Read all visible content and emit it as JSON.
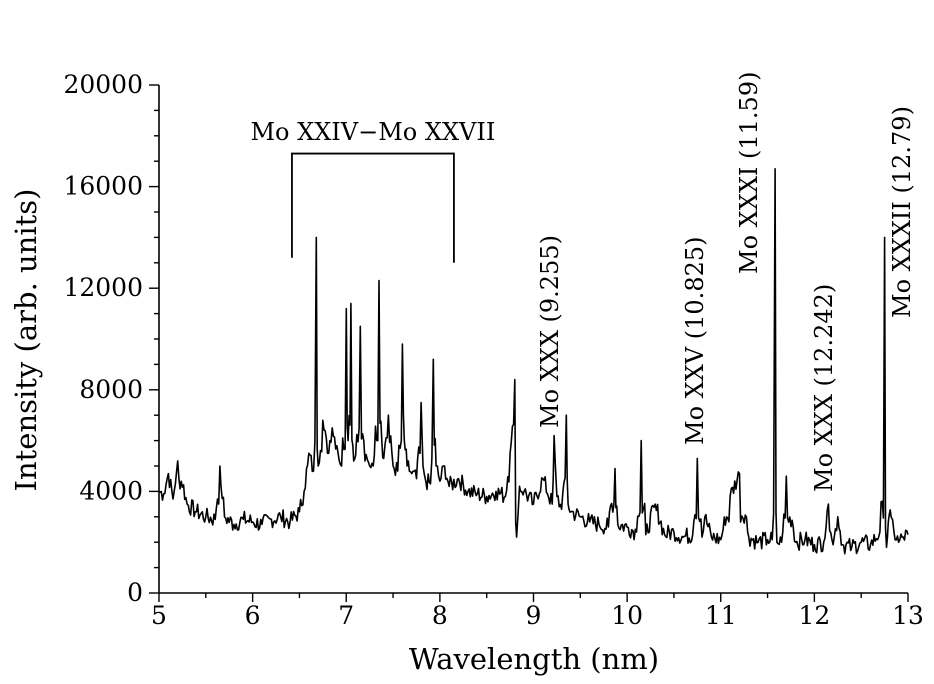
{
  "chart_data": {
    "type": "line",
    "xlabel": "Wavelength (nm)",
    "ylabel": "Intensity (arb. units)",
    "xlim": [
      5,
      13
    ],
    "ylim": [
      0,
      20000
    ],
    "x_ticks": [
      "5",
      "6",
      "7",
      "8",
      "9",
      "10",
      "11",
      "12",
      "13"
    ],
    "y_ticks": [
      "0",
      "4000",
      "8000",
      "12000",
      "16000",
      "20000"
    ],
    "grid": false,
    "series": [
      {
        "x": [
          5.0,
          5.05,
          5.1,
          5.15,
          5.2,
          5.3,
          5.4,
          5.5,
          5.6,
          5.65,
          5.7,
          5.8,
          5.9,
          6.0,
          6.1,
          6.2,
          6.3,
          6.4,
          6.5,
          6.55,
          6.6,
          6.65,
          6.68,
          6.7,
          6.75,
          6.8,
          6.85,
          6.9,
          6.95,
          7.0,
          7.02,
          7.05,
          7.08,
          7.1,
          7.15,
          7.2,
          7.25,
          7.3,
          7.35,
          7.38,
          7.4,
          7.45,
          7.5,
          7.55,
          7.6,
          7.62,
          7.65,
          7.7,
          7.75,
          7.8,
          7.82,
          7.85,
          7.9,
          7.93,
          7.96,
          8.0,
          8.05,
          8.1,
          8.2,
          8.3,
          8.4,
          8.5,
          8.6,
          8.7,
          8.75,
          8.8,
          8.82,
          8.85,
          8.9,
          9.0,
          9.1,
          9.2,
          9.22,
          9.25,
          9.3,
          9.35,
          9.37,
          9.4,
          9.5,
          9.6,
          9.7,
          9.8,
          9.87,
          9.9,
          10.0,
          10.1,
          10.15,
          10.2,
          10.3,
          10.4,
          10.5,
          10.6,
          10.7,
          10.75,
          10.8,
          10.83,
          10.9,
          11.0,
          11.1,
          11.2,
          11.3,
          11.4,
          11.5,
          11.55,
          11.58,
          11.6,
          11.65,
          11.7,
          11.8,
          11.9,
          12.0,
          12.1,
          12.15,
          12.2,
          12.25,
          12.3,
          12.4,
          12.5,
          12.6,
          12.7,
          12.75,
          12.77,
          12.79,
          12.82,
          12.85,
          12.9,
          12.95,
          13.0
        ],
        "values": [
          4000,
          3900,
          4700,
          3700,
          5200,
          3500,
          3200,
          3000,
          2900,
          5000,
          3000,
          2700,
          2900,
          2800,
          2700,
          2900,
          3000,
          2800,
          3200,
          4000,
          5500,
          4800,
          14000,
          5000,
          6800,
          5500,
          6500,
          5800,
          5000,
          11200,
          6000,
          11400,
          5200,
          5400,
          10500,
          5200,
          5000,
          5400,
          12300,
          6000,
          5300,
          7000,
          5000,
          4800,
          9800,
          6000,
          5000,
          4700,
          4500,
          7500,
          5000,
          4400,
          4300,
          9200,
          5000,
          4400,
          5000,
          4200,
          4500,
          4000,
          3900,
          3800,
          4000,
          3800,
          5500,
          8400,
          2200,
          4200,
          4000,
          3500,
          4500,
          3500,
          6200,
          3800,
          3300,
          7000,
          3500,
          3200,
          3000,
          2800,
          2700,
          2600,
          4900,
          2700,
          2600,
          2400,
          6000,
          2300,
          3500,
          2300,
          2400,
          2200,
          2300,
          5300,
          2200,
          3000,
          2200,
          2100,
          3800,
          4700,
          2200,
          2000,
          2100,
          2100,
          16700,
          2000,
          2000,
          4600,
          2000,
          2100,
          1900,
          2000,
          3500,
          1900,
          3000,
          1900,
          1800,
          2000,
          1900,
          2400,
          14000,
          1800,
          2800,
          3000,
          2400,
          2000,
          2200,
          2300
        ]
      }
    ],
    "annotations": [
      {
        "text": "Mo XXIV−Mo XXVII",
        "x_from": 6.42,
        "x_to": 8.15,
        "y_level": 17300
      },
      {
        "text": "Mo XXX (9.255)",
        "x": 9.255
      },
      {
        "text": "Mo XXV (10.825)",
        "x": 10.825
      },
      {
        "text": "Mo XXXI (11.59)",
        "x": 11.59
      },
      {
        "text": "Mo XXX (12.242)",
        "x": 12.242
      },
      {
        "text": "Mo XXXII (12.79)",
        "x": 12.79
      }
    ]
  }
}
